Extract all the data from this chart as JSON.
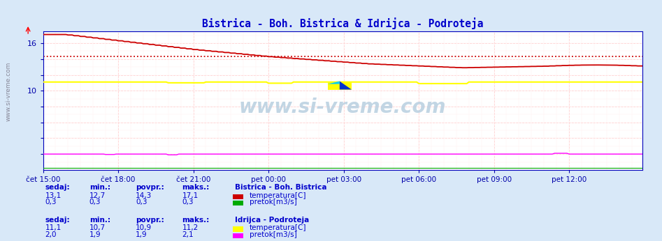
{
  "title": "Bistrica - Boh. Bistrica & Idrijca - Podroteja",
  "title_color": "#0000cc",
  "bg_color": "#d8e8f8",
  "plot_bg_color": "#ffffff",
  "grid_color_major": "#ffcccc",
  "grid_color_minor": "#ffeeee",
  "axis_color": "#0000ff",
  "tick_color": "#0000aa",
  "text_color": "#0000cc",
  "watermark_text": "www.si-vreme.com",
  "watermark_color": "#b0c8e0",
  "x_ticks_labels": [
    "čet 15:00",
    "čet 18:00",
    "čet 21:00",
    "pet 00:00",
    "pet 03:00",
    "pet 06:00",
    "pet 09:00",
    "pet 12:00"
  ],
  "x_ticks_pos": [
    0,
    36,
    72,
    108,
    144,
    180,
    216,
    252
  ],
  "n_points": 288,
  "ylim": [
    0,
    17.5
  ],
  "yticks": [
    2,
    4,
    6,
    8,
    10,
    12,
    14,
    16
  ],
  "ytick_show": [
    10,
    16
  ],
  "boh_temp_avg": 14.3,
  "boh_temp_color": "#cc0000",
  "boh_pretok_color": "#00aa00",
  "idr_temp_color": "#ffff00",
  "idr_pretok_color": "#ff00ff",
  "legend_text_color": "#0000cc",
  "sidebar_text": "www.si-vreme.com",
  "boh_vals": [
    "13,1",
    "12,7",
    "14,3",
    "17,1"
  ],
  "boh_pretok_vals": [
    "0,3",
    "0,3",
    "0,3",
    "0,3"
  ],
  "idr_vals": [
    "11,1",
    "10,7",
    "10,9",
    "11,2"
  ],
  "idr_pretok_vals": [
    "2,0",
    "1,9",
    "1,9",
    "2,1"
  ]
}
